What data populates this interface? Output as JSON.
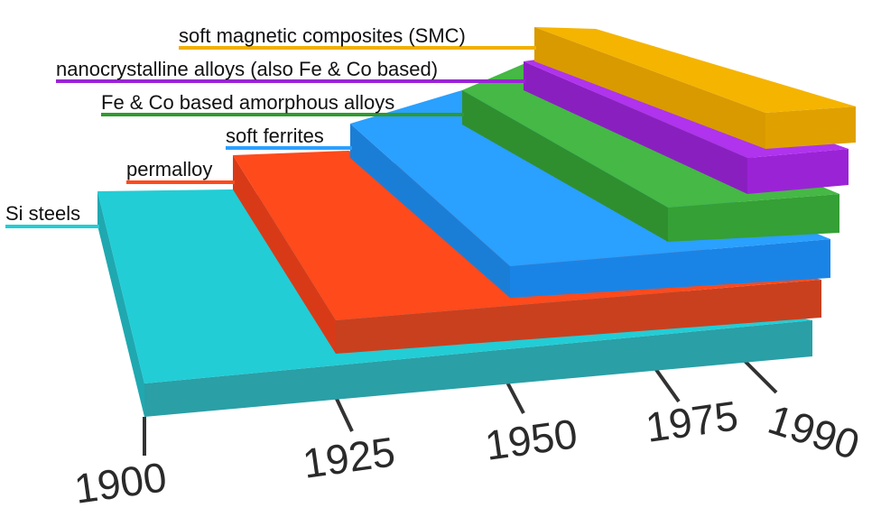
{
  "layers": [
    {
      "label": "Si steels"
    },
    {
      "label": "permalloy"
    },
    {
      "label": "soft ferrites"
    },
    {
      "label": "Fe & Co based amorphous alloys"
    },
    {
      "label": "nanocrystalline alloys (also Fe & Co based)"
    },
    {
      "label": "soft magnetic composites (SMC)"
    }
  ],
  "axis": {
    "labels": [
      "1900",
      "1925",
      "1950",
      "1975",
      "1990"
    ]
  }
}
